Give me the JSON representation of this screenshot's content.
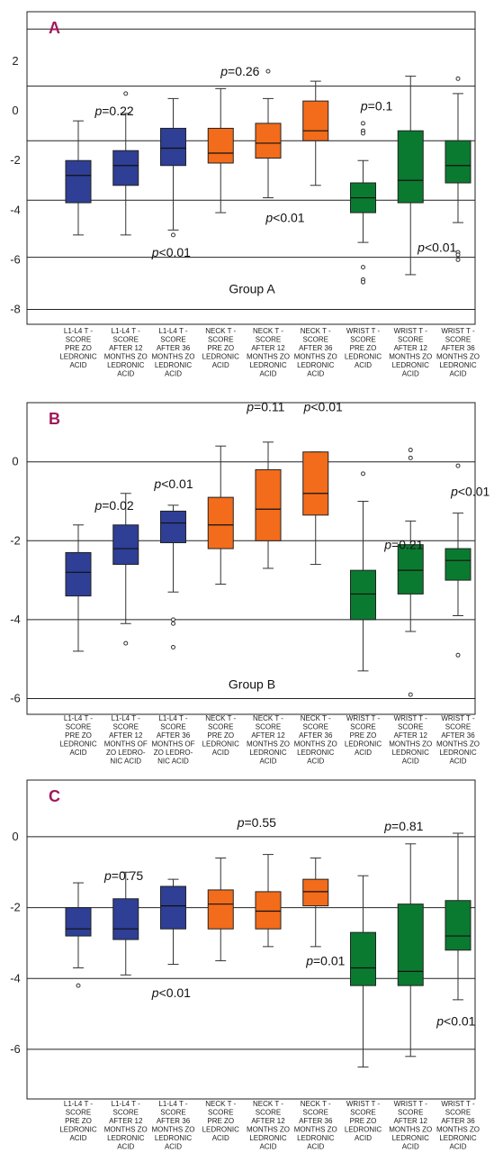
{
  "colors": {
    "blue": "#2e3f95",
    "orange": "#f26c1b",
    "green": "#0a7a30",
    "letter": "#a0185a"
  },
  "chart_data": [
    {
      "type": "box",
      "panel_label": "A",
      "group_label": "Group A",
      "ylim": [
        -8.6,
        4.0
      ],
      "yticks": [
        2,
        0,
        -2,
        -4,
        -6,
        -8
      ],
      "grid_lines": [
        3.3,
        1.0,
        -1.2,
        -3.6,
        -5.9,
        -8.0
      ],
      "categories": [
        [
          "L1-L4 T -",
          "SCORE",
          "PRE ZO",
          "LEDRONIC",
          "ACID"
        ],
        [
          "L1-L4 T -",
          "SCORE",
          "AFTER 12",
          "MONTHS ZO",
          "LEDRONIC",
          "ACID"
        ],
        [
          "L1-L4 T -",
          "SCORE",
          "AFTER 36",
          "MONTHS ZO",
          "LEDRONIC",
          "ACID"
        ],
        [
          "NECK T -",
          "SCORE",
          "PRE ZO",
          "LEDRONIC",
          "ACID"
        ],
        [
          "NECK T -",
          "SCORE",
          "AFTER 12",
          "MONTHS ZO",
          "LEDRONIC",
          "ACID"
        ],
        [
          "NECK T -",
          "SCORE",
          "AFTER 36",
          "MONTHS ZO",
          "LEDRONIC",
          "ACID"
        ],
        [
          "WRIST T -",
          "SCORE",
          "PRE ZO",
          "LEDRONIC",
          "ACID"
        ],
        [
          "WRIST T -",
          "SCORE",
          "AFTER 12",
          "MONTHS ZO",
          "LEDRONIC",
          "ACID"
        ],
        [
          "WRIST T -",
          "SCORE",
          "AFTER 36",
          "MONTHS ZO",
          "LEDRONIC",
          "ACID"
        ]
      ],
      "boxes": [
        {
          "color": "blue",
          "min": -5.0,
          "q1": -3.7,
          "median": -2.6,
          "q3": -2.0,
          "max": -0.4,
          "outliers": []
        },
        {
          "color": "blue",
          "min": -5.0,
          "q1": -3.0,
          "median": -2.2,
          "q3": -1.6,
          "max": -0.1,
          "outliers": [
            0.7
          ]
        },
        {
          "color": "blue",
          "min": -4.8,
          "q1": -2.2,
          "median": -1.5,
          "q3": -0.7,
          "max": 0.5,
          "outliers": [
            -5.0
          ]
        },
        {
          "color": "orange",
          "min": -4.1,
          "q1": -2.1,
          "median": -1.7,
          "q3": -0.7,
          "max": 0.9,
          "outliers": []
        },
        {
          "color": "orange",
          "min": -3.5,
          "q1": -1.9,
          "median": -1.3,
          "q3": -0.5,
          "max": 0.5,
          "outliers": [
            1.6
          ]
        },
        {
          "color": "orange",
          "min": -3.0,
          "q1": -1.2,
          "median": -0.8,
          "q3": 0.4,
          "max": 1.2,
          "outliers": []
        },
        {
          "color": "green",
          "min": -5.3,
          "q1": -4.1,
          "median": -3.5,
          "q3": -2.9,
          "max": -2.0,
          "outliers": [
            -0.5,
            -0.8,
            -0.9,
            -6.3,
            -6.8,
            -6.9
          ]
        },
        {
          "color": "green",
          "min": -6.6,
          "q1": -3.7,
          "median": -2.8,
          "q3": -0.8,
          "max": 1.4,
          "outliers": []
        },
        {
          "color": "green",
          "min": -4.5,
          "q1": -2.9,
          "median": -2.2,
          "q3": -1.2,
          "max": 0.7,
          "outliers": [
            1.3,
            -5.7,
            -5.8,
            -6.0
          ]
        }
      ],
      "annotations": [
        {
          "prefix": "p",
          "text": "=0.22",
          "x": 0.35,
          "y": 0.0
        },
        {
          "prefix": "p",
          "text": "=0.26",
          "x": 3.0,
          "y": 1.6
        },
        {
          "prefix": "p",
          "text": "=0.1",
          "x": 5.95,
          "y": 0.2
        },
        {
          "prefix": "p",
          "text": "<0.01",
          "x": 1.55,
          "y": -5.7
        },
        {
          "prefix": "p",
          "text": "<0.01",
          "x": 3.95,
          "y": -4.3
        },
        {
          "prefix": "p",
          "text": "<0.01",
          "x": 7.15,
          "y": -5.5
        }
      ]
    },
    {
      "type": "box",
      "panel_label": "B",
      "group_label": "Group B",
      "ylim": [
        -6.4,
        1.5
      ],
      "yticks": [
        0,
        -2,
        -4,
        -6
      ],
      "grid_lines": [
        0.0,
        -2.0,
        -4.0,
        -6.0
      ],
      "categories": [
        [
          "L1-L4 T -",
          "SCORE",
          "PRE ZO",
          "LEDRONIC",
          "ACID"
        ],
        [
          "L1-L4 T -",
          "SCORE",
          "AFTER 12",
          "MONTHS OF",
          "ZO LEDRO-",
          "NIC ACID"
        ],
        [
          "L1-L4 T -",
          "SCORE",
          "AFTER 36",
          "MONTHS OF",
          "ZO LEDRO-",
          "NIC ACID"
        ],
        [
          "NECK T -",
          "SCORE",
          "PRE ZO",
          "LEDRONIC",
          "ACID"
        ],
        [
          "NECK T -",
          "SCORE",
          "AFTER 12",
          "MONTHS ZO",
          "LEDRONIC",
          "ACID"
        ],
        [
          "NECK T -",
          "SCORE",
          "AFTER 36",
          "MONTHS ZO",
          "LEDRONIC",
          "ACID"
        ],
        [
          "WRIST T -",
          "SCORE",
          "PRE ZO",
          "LEDRONIC",
          "ACID"
        ],
        [
          "WRIST T -",
          "SCORE",
          "AFTER 12",
          "MONTHS ZO",
          "LEDRONIC",
          "ACID"
        ],
        [
          "WRIST T -",
          "SCORE",
          "AFTER 36",
          "MONTHS ZO",
          "LEDRONIC",
          "ACID"
        ]
      ],
      "boxes": [
        {
          "color": "blue",
          "min": -4.8,
          "q1": -3.4,
          "median": -2.8,
          "q3": -2.3,
          "max": -1.6,
          "outliers": []
        },
        {
          "color": "blue",
          "min": -4.1,
          "q1": -2.6,
          "median": -2.2,
          "q3": -1.6,
          "max": -0.8,
          "outliers": [
            -4.6
          ]
        },
        {
          "color": "blue",
          "min": -3.3,
          "q1": -2.05,
          "median": -1.55,
          "q3": -1.25,
          "max": -1.1,
          "outliers": [
            -4.0,
            -4.1,
            -4.7
          ]
        },
        {
          "color": "orange",
          "min": -3.1,
          "q1": -2.2,
          "median": -1.6,
          "q3": -0.9,
          "max": 0.4,
          "outliers": []
        },
        {
          "color": "orange",
          "min": -2.7,
          "q1": -2.0,
          "median": -1.2,
          "q3": -0.2,
          "max": 0.5,
          "outliers": []
        },
        {
          "color": "orange",
          "min": -2.6,
          "q1": -1.35,
          "median": -0.8,
          "q3": 0.25,
          "max": 0.25,
          "outliers": []
        },
        {
          "color": "green",
          "min": -5.3,
          "q1": -4.0,
          "median": -3.35,
          "q3": -2.75,
          "max": -1.0,
          "outliers": [
            -0.3
          ]
        },
        {
          "color": "green",
          "min": -4.3,
          "q1": -3.35,
          "median": -2.75,
          "q3": -2.1,
          "max": -1.5,
          "outliers": [
            0.3,
            0.1,
            -5.9
          ]
        },
        {
          "color": "green",
          "min": -3.9,
          "q1": -3.0,
          "median": -2.5,
          "q3": -2.2,
          "max": -1.3,
          "outliers": [
            -0.1,
            -4.9
          ]
        }
      ],
      "annotations": [
        {
          "prefix": "p",
          "text": "=0.02",
          "x": 0.35,
          "y": -1.1
        },
        {
          "prefix": "p",
          "text": "<0.01",
          "x": 1.6,
          "y": -0.55
        },
        {
          "prefix": "p",
          "text": "=0.11",
          "x": 3.55,
          "y": 1.4
        },
        {
          "prefix": "p",
          "text": "<0.01",
          "x": 4.75,
          "y": 1.4
        },
        {
          "prefix": "p",
          "text": "=0.21",
          "x": 6.45,
          "y": -2.1
        },
        {
          "prefix": "p",
          "text": "<0.01",
          "x": 7.85,
          "y": -0.75
        }
      ]
    },
    {
      "type": "box",
      "panel_label": "C",
      "group_label": "",
      "ylim": [
        -7.4,
        1.6
      ],
      "yticks": [
        0,
        -2,
        -4,
        -6
      ],
      "grid_lines": [
        0.0,
        -2.0,
        -4.0,
        -6.0
      ],
      "categories": [
        [
          "L1-L4 T -",
          "SCORE",
          "PRE ZO",
          "LEDRONIC",
          "ACID"
        ],
        [
          "L1-L4 T -",
          "SCORE",
          "AFTER 12",
          "MONTHS ZO",
          "LEDRONIC",
          "ACID"
        ],
        [
          "L1-L4 T -",
          "SCORE",
          "AFTER 36",
          "MONTHS ZO",
          "LEDRONIC",
          "ACID"
        ],
        [
          "NECK T -",
          "SCORE",
          "PRE ZO",
          "LEDRONIC",
          "ACID"
        ],
        [
          "NECK T -",
          "SCORE",
          "AFTER 12",
          "MONTHS ZO",
          "LEDRONIC",
          "ACID"
        ],
        [
          "NECK T -",
          "SCORE",
          "AFTER 36",
          "MONTHS ZO",
          "LEDRONIC",
          "ACID"
        ],
        [
          "WRIST T -",
          "SCORE",
          "PRE ZO",
          "LEDRONIC",
          "ACID"
        ],
        [
          "WRIST T -",
          "SCORE",
          "AFTER 12",
          "MONTHS ZO",
          "LEDRONIC",
          "ACID"
        ],
        [
          "WRIST T -",
          "SCORE",
          "AFTER 36",
          "MONTHS ZO",
          "LEDRONIC",
          "ACID"
        ]
      ],
      "boxes": [
        {
          "color": "blue",
          "min": -3.7,
          "q1": -2.8,
          "median": -2.6,
          "q3": -2.0,
          "max": -1.3,
          "outliers": [
            -4.2
          ]
        },
        {
          "color": "blue",
          "min": -3.9,
          "q1": -2.9,
          "median": -2.6,
          "q3": -1.75,
          "max": -1.0,
          "outliers": []
        },
        {
          "color": "blue",
          "min": -3.6,
          "q1": -2.6,
          "median": -1.95,
          "q3": -1.4,
          "max": -1.2,
          "outliers": []
        },
        {
          "color": "orange",
          "min": -3.5,
          "q1": -2.6,
          "median": -1.9,
          "q3": -1.5,
          "max": -0.6,
          "outliers": []
        },
        {
          "color": "orange",
          "min": -3.1,
          "q1": -2.6,
          "median": -2.1,
          "q3": -1.55,
          "max": -0.5,
          "outliers": []
        },
        {
          "color": "orange",
          "min": -3.1,
          "q1": -1.95,
          "median": -1.55,
          "q3": -1.2,
          "max": -0.6,
          "outliers": []
        },
        {
          "color": "green",
          "min": -6.5,
          "q1": -4.2,
          "median": -3.7,
          "q3": -2.7,
          "max": -1.1,
          "outliers": []
        },
        {
          "color": "green",
          "min": -6.2,
          "q1": -4.2,
          "median": -3.8,
          "q3": -1.9,
          "max": -0.2,
          "outliers": []
        },
        {
          "color": "green",
          "min": -4.6,
          "q1": -3.2,
          "median": -2.8,
          "q3": -1.8,
          "max": 0.1,
          "outliers": []
        }
      ],
      "annotations": [
        {
          "prefix": "p",
          "text": "=0.75",
          "x": 0.55,
          "y": -1.1
        },
        {
          "prefix": "p",
          "text": "<0.01",
          "x": 1.55,
          "y": -4.4
        },
        {
          "prefix": "p",
          "text": "=0.55",
          "x": 3.35,
          "y": 0.4
        },
        {
          "prefix": "p",
          "text": "=0.01",
          "x": 4.8,
          "y": -3.5
        },
        {
          "prefix": "p",
          "text": "=0.81",
          "x": 6.45,
          "y": 0.3
        },
        {
          "prefix": "p",
          "text": "<0.01",
          "x": 7.55,
          "y": -5.2
        }
      ]
    }
  ]
}
